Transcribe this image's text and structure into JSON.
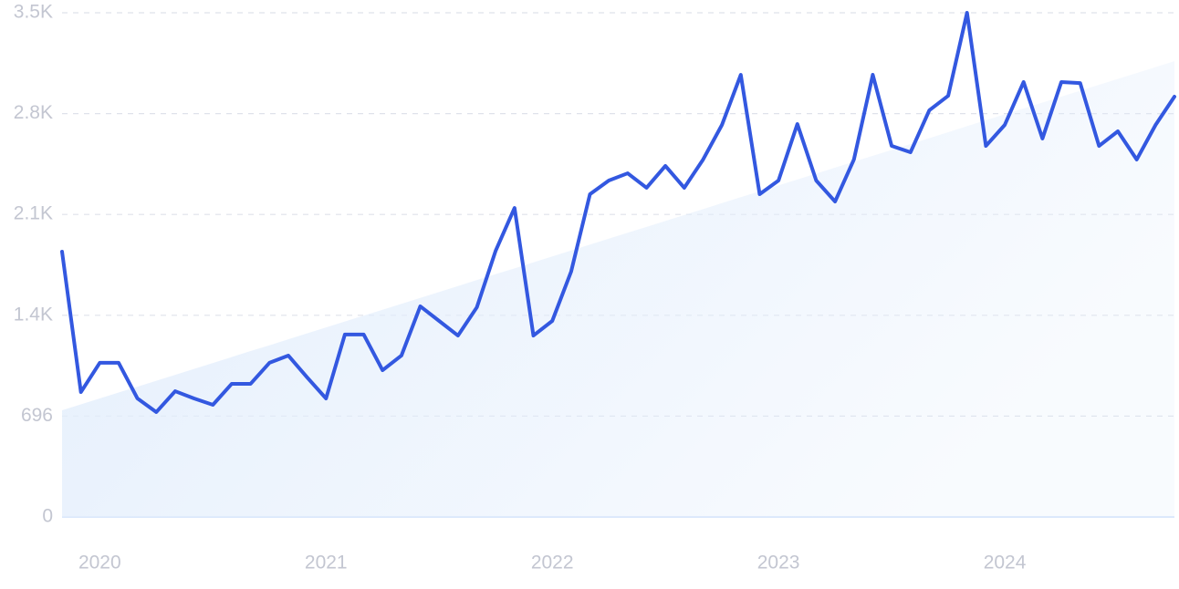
{
  "chart_data": {
    "type": "line",
    "categories": [
      null,
      null,
      "2020",
      null,
      null,
      null,
      null,
      null,
      null,
      null,
      null,
      null,
      null,
      null,
      "2021",
      null,
      null,
      null,
      null,
      null,
      null,
      null,
      null,
      null,
      null,
      null,
      "2022",
      null,
      null,
      null,
      null,
      null,
      null,
      null,
      null,
      null,
      null,
      null,
      "2023",
      null,
      null,
      null,
      null,
      null,
      null,
      null,
      null,
      null,
      null,
      null,
      "2024",
      null,
      null,
      null,
      null,
      null,
      null,
      null,
      null,
      null
    ],
    "values": [
      1831,
      862,
      1064,
      1064,
      818,
      724,
      868,
      818,
      774,
      919,
      919,
      1064,
      1114,
      963,
      818,
      1259,
      1259,
      1013,
      1114,
      1454,
      1353,
      1252,
      1447,
      1838,
      2133,
      1252,
      1353,
      1693,
      2228,
      2322,
      2372,
      2272,
      2423,
      2272,
      2467,
      2706,
      3052,
      2228,
      2322,
      2712,
      2322,
      2177,
      2467,
      3052,
      2561,
      2517,
      2807,
      2907,
      3480,
      2561,
      2706,
      3002,
      2612,
      3002,
      2995,
      2561,
      2662,
      2467,
      2706,
      2901
    ],
    "color": "#3358e0",
    "trend": [
      736,
      777,
      818,
      859,
      899,
      940,
      981,
      1022,
      1063,
      1104,
      1145,
      1185,
      1226,
      1267,
      1308,
      1349,
      1390,
      1430,
      1471,
      1512,
      1553,
      1594,
      1635,
      1676,
      1716,
      1757,
      1798,
      1839,
      1880,
      1921,
      1962,
      2002,
      2043,
      2084,
      2125,
      2166,
      2207,
      2247,
      2288,
      2329,
      2370,
      2411,
      2452,
      2493,
      2533,
      2574,
      2615,
      2656,
      2697,
      2738,
      2779,
      2819,
      2860,
      2901,
      2942,
      2983,
      3024,
      3064,
      3105,
      3146
    ],
    "trend_color": "#e3eefc",
    "ylim": [
      0,
      3480
    ],
    "yticks": [
      0,
      696,
      {
        "value": 1392,
        "label": "1.4K"
      },
      {
        "value": 2088,
        "label": "2.1K"
      },
      {
        "value": 2784,
        "label": "2.8K"
      },
      {
        "value": 3480,
        "label": "3.5K"
      }
    ],
    "grid": true
  }
}
